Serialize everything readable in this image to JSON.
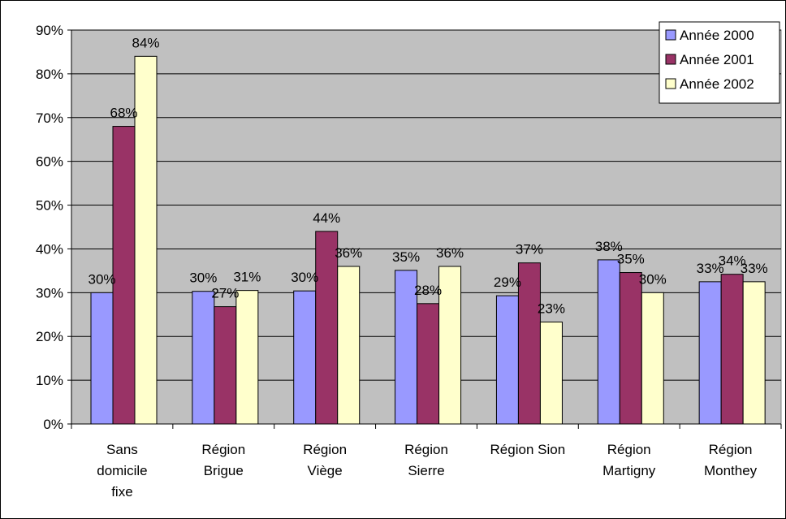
{
  "chart_data": {
    "type": "bar",
    "categories": [
      [
        "Sans",
        "domicile",
        "fixe"
      ],
      [
        "Région",
        "Brigue"
      ],
      [
        "Région",
        "Viège"
      ],
      [
        "Région",
        "Sierre"
      ],
      [
        "Région Sion"
      ],
      [
        "Région",
        "Martigny"
      ],
      [
        "Région",
        "Monthey"
      ]
    ],
    "series": [
      {
        "name": "Année 2000",
        "color": "#9999ff",
        "values": [
          0.3,
          0.303,
          0.304,
          0.351,
          0.293,
          0.375,
          0.325
        ],
        "labels": [
          "30%",
          "30%",
          "30%",
          "35%",
          "29%",
          "38%",
          "33%"
        ]
      },
      {
        "name": "Année 2001",
        "color": "#993366",
        "values": [
          0.68,
          0.268,
          0.44,
          0.275,
          0.368,
          0.346,
          0.342
        ],
        "labels": [
          "68%",
          "27%",
          "44%",
          "28%",
          "37%",
          "35%",
          "34%"
        ]
      },
      {
        "name": "Année 2002",
        "color": "#ffffcc",
        "values": [
          0.84,
          0.305,
          0.36,
          0.36,
          0.233,
          0.3,
          0.325
        ],
        "labels": [
          "84%",
          "31%",
          "36%",
          "36%",
          "23%",
          "30%",
          "33%"
        ]
      }
    ],
    "y_ticks": [
      "0%",
      "10%",
      "20%",
      "30%",
      "40%",
      "50%",
      "60%",
      "70%",
      "80%",
      "90%"
    ],
    "ylim": [
      0,
      0.9
    ],
    "y_tick_step": 0.1,
    "plot_background": "#c0c0c0",
    "grid": true,
    "legend_position": "top-right",
    "title": "",
    "xlabel": "",
    "ylabel": ""
  }
}
